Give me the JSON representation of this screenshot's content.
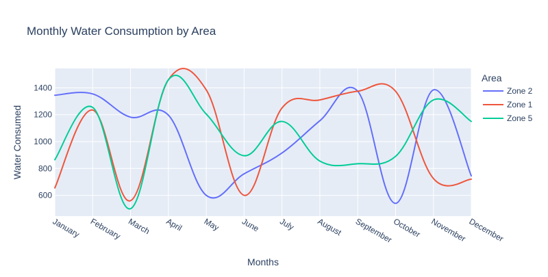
{
  "chart_data": {
    "type": "line",
    "title": "Monthly Water Consumption by Area",
    "xlabel": "Months",
    "ylabel": "Water Consumed",
    "categories": [
      "January",
      "February",
      "March",
      "April",
      "May",
      "June",
      "July",
      "August",
      "September",
      "October",
      "November",
      "December"
    ],
    "yticks": [
      600,
      800,
      1000,
      1200,
      1400
    ],
    "ylim": [
      445,
      1545
    ],
    "grid": true,
    "legend": {
      "title": "Area",
      "placement": "top-right"
    },
    "series": [
      {
        "name": "Zone 2",
        "color": "#636efa",
        "values": [
          1345,
          1355,
          1182,
          1197,
          600,
          760,
          915,
          1155,
          1375,
          540,
          1385,
          745
        ]
      },
      {
        "name": "Zone 1",
        "color": "#ef553b",
        "values": [
          655,
          1235,
          560,
          1460,
          1385,
          600,
          1250,
          1310,
          1375,
          1375,
          725,
          720
        ]
      },
      {
        "name": "Zone 5",
        "color": "#00cc96",
        "values": [
          865,
          1255,
          500,
          1460,
          1205,
          895,
          1150,
          855,
          835,
          890,
          1310,
          1150
        ]
      }
    ]
  }
}
